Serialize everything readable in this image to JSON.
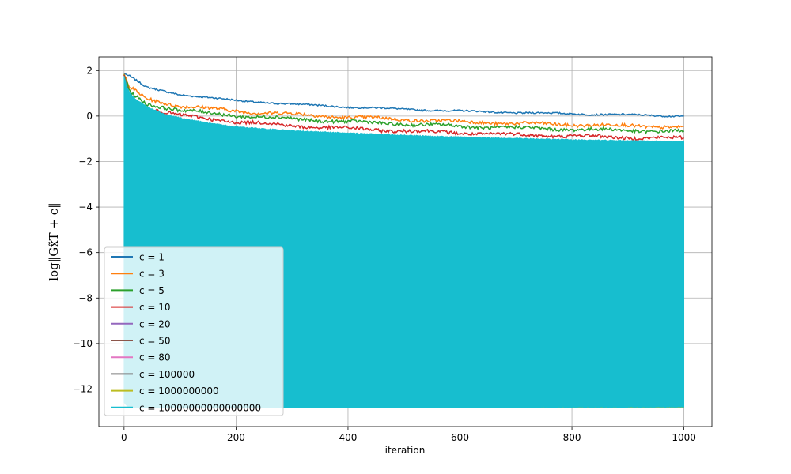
{
  "chart_data": {
    "type": "line",
    "title": "",
    "xlabel": "iteration",
    "ylabel": "log‖Gx̃T + c‖",
    "xlim": [
      -45,
      1050
    ],
    "ylim": [
      -13.65,
      2.6
    ],
    "xticks": [
      0,
      200,
      400,
      600,
      800,
      1000
    ],
    "yticks": [
      2,
      0,
      -2,
      -4,
      -6,
      -8,
      -10,
      -12
    ],
    "ytick_labels": [
      "2",
      "0",
      "−2",
      "−4",
      "−6",
      "−8",
      "−10",
      "−12"
    ],
    "grid": true,
    "legend_position": "lower-left",
    "series": [
      {
        "name": "c = 1",
        "color": "#1f77b4",
        "x": [
          0,
          10,
          40,
          100,
          200,
          300,
          400,
          500,
          600,
          700,
          800,
          900,
          1000
        ],
        "y": [
          1.87,
          1.75,
          1.25,
          0.95,
          0.68,
          0.52,
          0.4,
          0.3,
          0.22,
          0.15,
          0.1,
          0.05,
          0.0
        ]
      },
      {
        "name": "c = 3",
        "color": "#ff7f0e",
        "x": [
          0,
          10,
          40,
          100,
          200,
          300,
          400,
          500,
          600,
          700,
          800,
          900,
          1000
        ],
        "y": [
          1.85,
          1.25,
          0.75,
          0.45,
          0.22,
          0.08,
          -0.05,
          -0.15,
          -0.25,
          -0.32,
          -0.38,
          -0.43,
          -0.48
        ]
      },
      {
        "name": "c = 5",
        "color": "#2ca02c",
        "x": [
          0,
          10,
          40,
          100,
          200,
          300,
          400,
          500,
          600,
          700,
          800,
          900,
          1000
        ],
        "y": [
          1.82,
          1.05,
          0.55,
          0.25,
          0.02,
          -0.12,
          -0.25,
          -0.35,
          -0.45,
          -0.52,
          -0.58,
          -0.63,
          -0.68
        ]
      },
      {
        "name": "c = 10",
        "color": "#d62728",
        "x": [
          0,
          10,
          40,
          100,
          200,
          300,
          400,
          500,
          600,
          700,
          800,
          900,
          1000
        ],
        "y": [
          1.8,
          0.8,
          0.35,
          0.02,
          -0.25,
          -0.42,
          -0.55,
          -0.65,
          -0.74,
          -0.82,
          -0.88,
          -0.94,
          -0.98
        ]
      },
      {
        "name": "c = 20",
        "color": "#9467bd",
        "x": [
          0,
          1000
        ],
        "y": [
          -12.8,
          -12.8
        ]
      },
      {
        "name": "c = 50",
        "color": "#8c564b",
        "x": [
          0,
          1000
        ],
        "y": [
          -12.8,
          -12.8
        ]
      },
      {
        "name": "c = 80",
        "color": "#e377c2",
        "x": [
          0,
          1000
        ],
        "y": [
          -12.8,
          -12.8
        ]
      },
      {
        "name": "c = 100000",
        "color": "#7f7f7f",
        "x": [
          0,
          1000
        ],
        "y": [
          -12.8,
          -12.8
        ]
      },
      {
        "name": "c = 1000000000",
        "color": "#bcbd22",
        "x": [
          0,
          1000
        ],
        "y": [
          -12.8,
          -12.8
        ]
      },
      {
        "name": "c = 10000000000000000",
        "color": "#17becf",
        "oscillating_band": true,
        "x": [
          0,
          5,
          10,
          20,
          40,
          70,
          100,
          150,
          200,
          300,
          400,
          500,
          600,
          700,
          800,
          900,
          1000
        ],
        "upper": [
          1.8,
          1.3,
          1.05,
          0.78,
          0.45,
          0.12,
          -0.05,
          -0.28,
          -0.45,
          -0.62,
          -0.72,
          -0.82,
          -0.9,
          -0.96,
          -1.02,
          -1.06,
          -1.1
        ],
        "lower": [
          -12.6,
          -12.75,
          -12.8,
          -12.82,
          -12.83,
          -12.83,
          -12.83,
          -12.83,
          -12.83,
          -12.83,
          -12.82,
          -12.82,
          -12.82,
          -12.82,
          -12.81,
          -12.81,
          -12.8
        ]
      }
    ]
  }
}
